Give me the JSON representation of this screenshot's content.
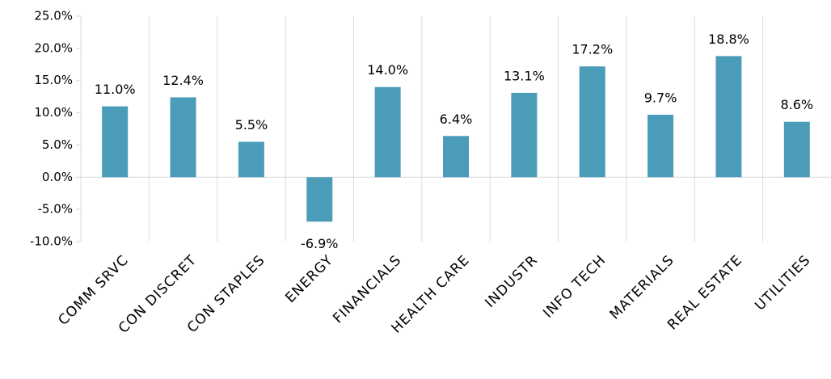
{
  "chart_data": {
    "type": "bar",
    "categories": [
      "COMM SRVC",
      "CON DISCRET",
      "CON STAPLES",
      "ENERGY",
      "FINANCIALS",
      "HEALTH CARE",
      "INDUSTR",
      "INFO TECH",
      "MATERIALS",
      "REAL ESTATE",
      "UTILITIES"
    ],
    "values": [
      11.0,
      12.4,
      5.5,
      -6.9,
      14.0,
      6.4,
      13.1,
      17.2,
      9.7,
      18.8,
      8.6
    ],
    "value_labels": [
      "11.0%",
      "12.4%",
      "5.5%",
      "-6.9%",
      "14.0%",
      "6.4%",
      "13.1%",
      "17.2%",
      "9.7%",
      "18.8%",
      "8.6%"
    ],
    "color": "#4a9cb8",
    "ylim": [
      -10,
      25
    ],
    "yticks": [
      {
        "value": -10,
        "label": "-10.0%"
      },
      {
        "value": -5,
        "label": "-5.0%"
      },
      {
        "value": 0,
        "label": "0.0%"
      },
      {
        "value": 5,
        "label": "5.0%"
      },
      {
        "value": 10,
        "label": "10.0%"
      },
      {
        "value": 15,
        "label": "15.0%"
      },
      {
        "value": 20,
        "label": "20.0%"
      },
      {
        "value": 25,
        "label": "25.0%"
      }
    ]
  }
}
